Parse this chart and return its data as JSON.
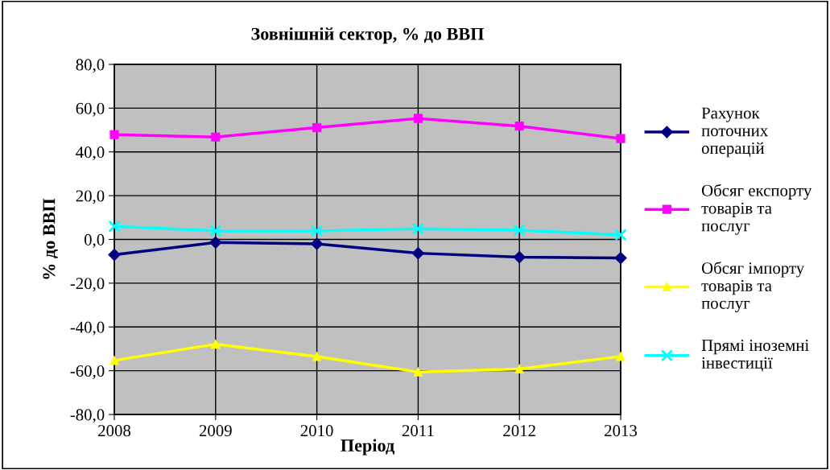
{
  "chart_data": {
    "type": "line",
    "title": "Зовнішній сектор, % до ВВП",
    "xlabel": "Період",
    "ylabel": "% до ВВП",
    "categories": [
      "2008",
      "2009",
      "2010",
      "2011",
      "2012",
      "2013"
    ],
    "series": [
      {
        "name": "Рахунок поточних операцій",
        "color": "#000080",
        "marker": "diamond",
        "values": [
          -7.0,
          -1.4,
          -2.0,
          -6.3,
          -8.1,
          -8.5
        ]
      },
      {
        "name": "Обсяг експорту товарів та послуг",
        "color": "#ff00ff",
        "marker": "square",
        "values": [
          47.9,
          46.8,
          51.1,
          55.3,
          51.8,
          46.1
        ]
      },
      {
        "name": "Обсяг імпорту товарів та послуг",
        "color": "#ffff00",
        "marker": "triangle",
        "values": [
          -55.3,
          -47.9,
          -53.5,
          -60.6,
          -59.2,
          -53.5
        ]
      },
      {
        "name": "Прямі іноземні інвестиції",
        "color": "#00ffff",
        "marker": "cross",
        "values": [
          6.0,
          3.9,
          3.9,
          4.9,
          4.2,
          2.1
        ]
      }
    ],
    "ylim": [
      -80,
      80
    ],
    "yticks": [
      {
        "value": -80,
        "label": "-80,0"
      },
      {
        "value": -60,
        "label": "-60,0"
      },
      {
        "value": -40,
        "label": "-40,0"
      },
      {
        "value": -20,
        "label": "-20,0"
      },
      {
        "value": 0,
        "label": "0,0"
      },
      {
        "value": 20,
        "label": "20,0"
      },
      {
        "value": 40,
        "label": "40,0"
      },
      {
        "value": 60,
        "label": "60,0"
      },
      {
        "value": 80,
        "label": "80,0"
      }
    ],
    "grid": true,
    "legend": "right",
    "line_style": "solid"
  }
}
